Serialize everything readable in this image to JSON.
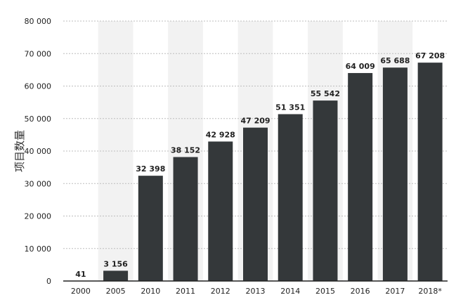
{
  "chart_data": {
    "type": "bar",
    "title": "",
    "xlabel": "",
    "ylabel": "项目数量",
    "ylim": [
      0,
      80000
    ],
    "yticks": [
      0,
      10000,
      20000,
      30000,
      40000,
      50000,
      60000,
      70000,
      80000
    ],
    "ytick_labels": [
      "0",
      "10 000",
      "20 000",
      "30 000",
      "40 000",
      "50 000",
      "60 000",
      "70 000",
      "80 000"
    ],
    "categories": [
      "2000",
      "2005",
      "2010",
      "2011",
      "2012",
      "2013",
      "2014",
      "2015",
      "2016",
      "2017",
      "2018*"
    ],
    "values": [
      41,
      3156,
      32398,
      38152,
      42928,
      47209,
      51351,
      55542,
      64009,
      65688,
      67208
    ],
    "value_labels": [
      "41",
      "3 156",
      "32 398",
      "38 152",
      "42 928",
      "47 209",
      "51 351",
      "55 542",
      "64 009",
      "65 688",
      "67 208"
    ],
    "grid": true,
    "alternating_band_columns": [
      "2005",
      "2011",
      "2013",
      "2015",
      "2017"
    ],
    "colors": {
      "bar": "#34383a",
      "band": "#f2f2f2",
      "grid": "#bdbdbd",
      "axis": "#222222"
    }
  }
}
